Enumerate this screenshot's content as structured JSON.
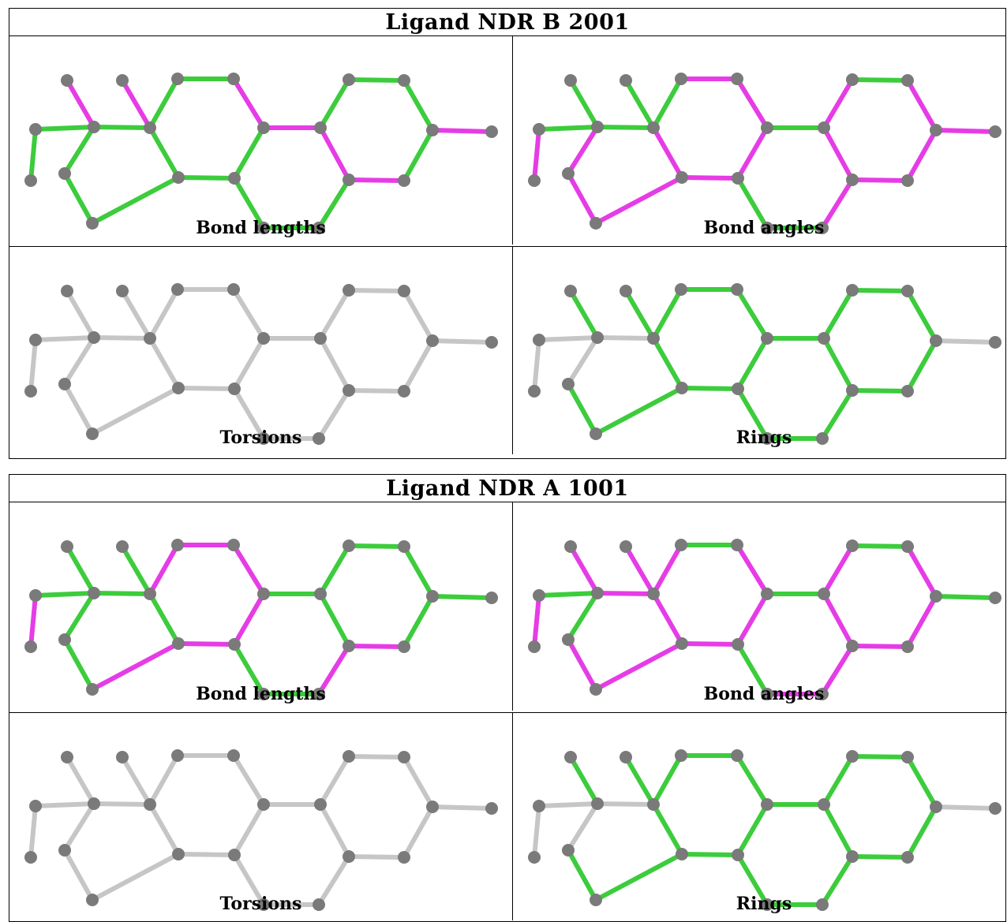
{
  "colors": {
    "pass": "#3ccc3c",
    "fail": "#e63ce6",
    "neutral": "#c6c6c6",
    "atom": "#7a7a7a"
  },
  "panels": [
    {
      "title": "Ligand NDR B 2001",
      "views": [
        {
          "caption": "Bond lengths",
          "bond_colors": [
            "pass",
            "pass",
            "fail",
            "pass",
            "fail",
            "pass",
            "pass",
            "pass",
            "pass",
            "pass",
            "pass",
            "fail",
            "pass",
            "pass",
            "fail",
            "pass",
            "pass",
            "pass",
            "fail",
            "pass",
            "pass",
            "pass",
            "fail",
            "fail",
            "pass"
          ]
        },
        {
          "caption": "Bond angles",
          "bond_colors": [
            "fail",
            "pass",
            "pass",
            "pass",
            "pass",
            "fail",
            "fail",
            "fail",
            "fail",
            "pass",
            "fail",
            "fail",
            "fail",
            "fail",
            "pass",
            "pass",
            "pass",
            "fail",
            "fail",
            "fail",
            "pass",
            "fail",
            "fail",
            "fail",
            "fail"
          ]
        },
        {
          "caption": "Torsions",
          "bond_colors": [
            "neutral",
            "neutral",
            "neutral",
            "neutral",
            "neutral",
            "neutral",
            "neutral",
            "neutral",
            "neutral",
            "neutral",
            "neutral",
            "neutral",
            "neutral",
            "neutral",
            "neutral",
            "neutral",
            "neutral",
            "neutral",
            "neutral",
            "neutral",
            "neutral",
            "neutral",
            "neutral",
            "neutral",
            "neutral"
          ]
        },
        {
          "caption": "Rings",
          "bond_colors": [
            "neutral",
            "neutral",
            "pass",
            "neutral",
            "pass",
            "neutral",
            "pass",
            "pass",
            "pass",
            "pass",
            "pass",
            "pass",
            "pass",
            "pass",
            "pass",
            "pass",
            "pass",
            "pass",
            "pass",
            "pass",
            "pass",
            "pass",
            "neutral",
            "pass",
            "pass"
          ]
        }
      ]
    },
    {
      "title": "Ligand NDR A 1001",
      "views": [
        {
          "caption": "Bond lengths",
          "bond_colors": [
            "fail",
            "pass",
            "pass",
            "pass",
            "pass",
            "pass",
            "pass",
            "fail",
            "pass",
            "fail",
            "fail",
            "fail",
            "fail",
            "fail",
            "pass",
            "pass",
            "pass",
            "fail",
            "pass",
            "pass",
            "pass",
            "pass",
            "pass",
            "fail",
            "pass"
          ]
        },
        {
          "caption": "Bond angles",
          "bond_colors": [
            "fail",
            "pass",
            "fail",
            "fail",
            "fail",
            "pass",
            "fail",
            "fail",
            "fail",
            "fail",
            "pass",
            "fail",
            "fail",
            "fail",
            "pass",
            "pass",
            "fail",
            "fail",
            "fail",
            "fail",
            "pass",
            "fail",
            "pass",
            "fail",
            "fail"
          ]
        },
        {
          "caption": "Torsions",
          "bond_colors": [
            "neutral",
            "neutral",
            "neutral",
            "neutral",
            "neutral",
            "neutral",
            "neutral",
            "neutral",
            "neutral",
            "neutral",
            "neutral",
            "neutral",
            "neutral",
            "neutral",
            "neutral",
            "neutral",
            "neutral",
            "neutral",
            "neutral",
            "neutral",
            "neutral",
            "neutral",
            "neutral",
            "neutral",
            "neutral"
          ]
        },
        {
          "caption": "Rings",
          "bond_colors": [
            "neutral",
            "neutral",
            "pass",
            "neutral",
            "pass",
            "neutral",
            "pass",
            "pass",
            "pass",
            "pass",
            "pass",
            "pass",
            "pass",
            "pass",
            "pass",
            "pass",
            "pass",
            "pass",
            "pass",
            "pass",
            "pass",
            "pass",
            "neutral",
            "pass",
            "pass"
          ]
        }
      ]
    }
  ]
}
